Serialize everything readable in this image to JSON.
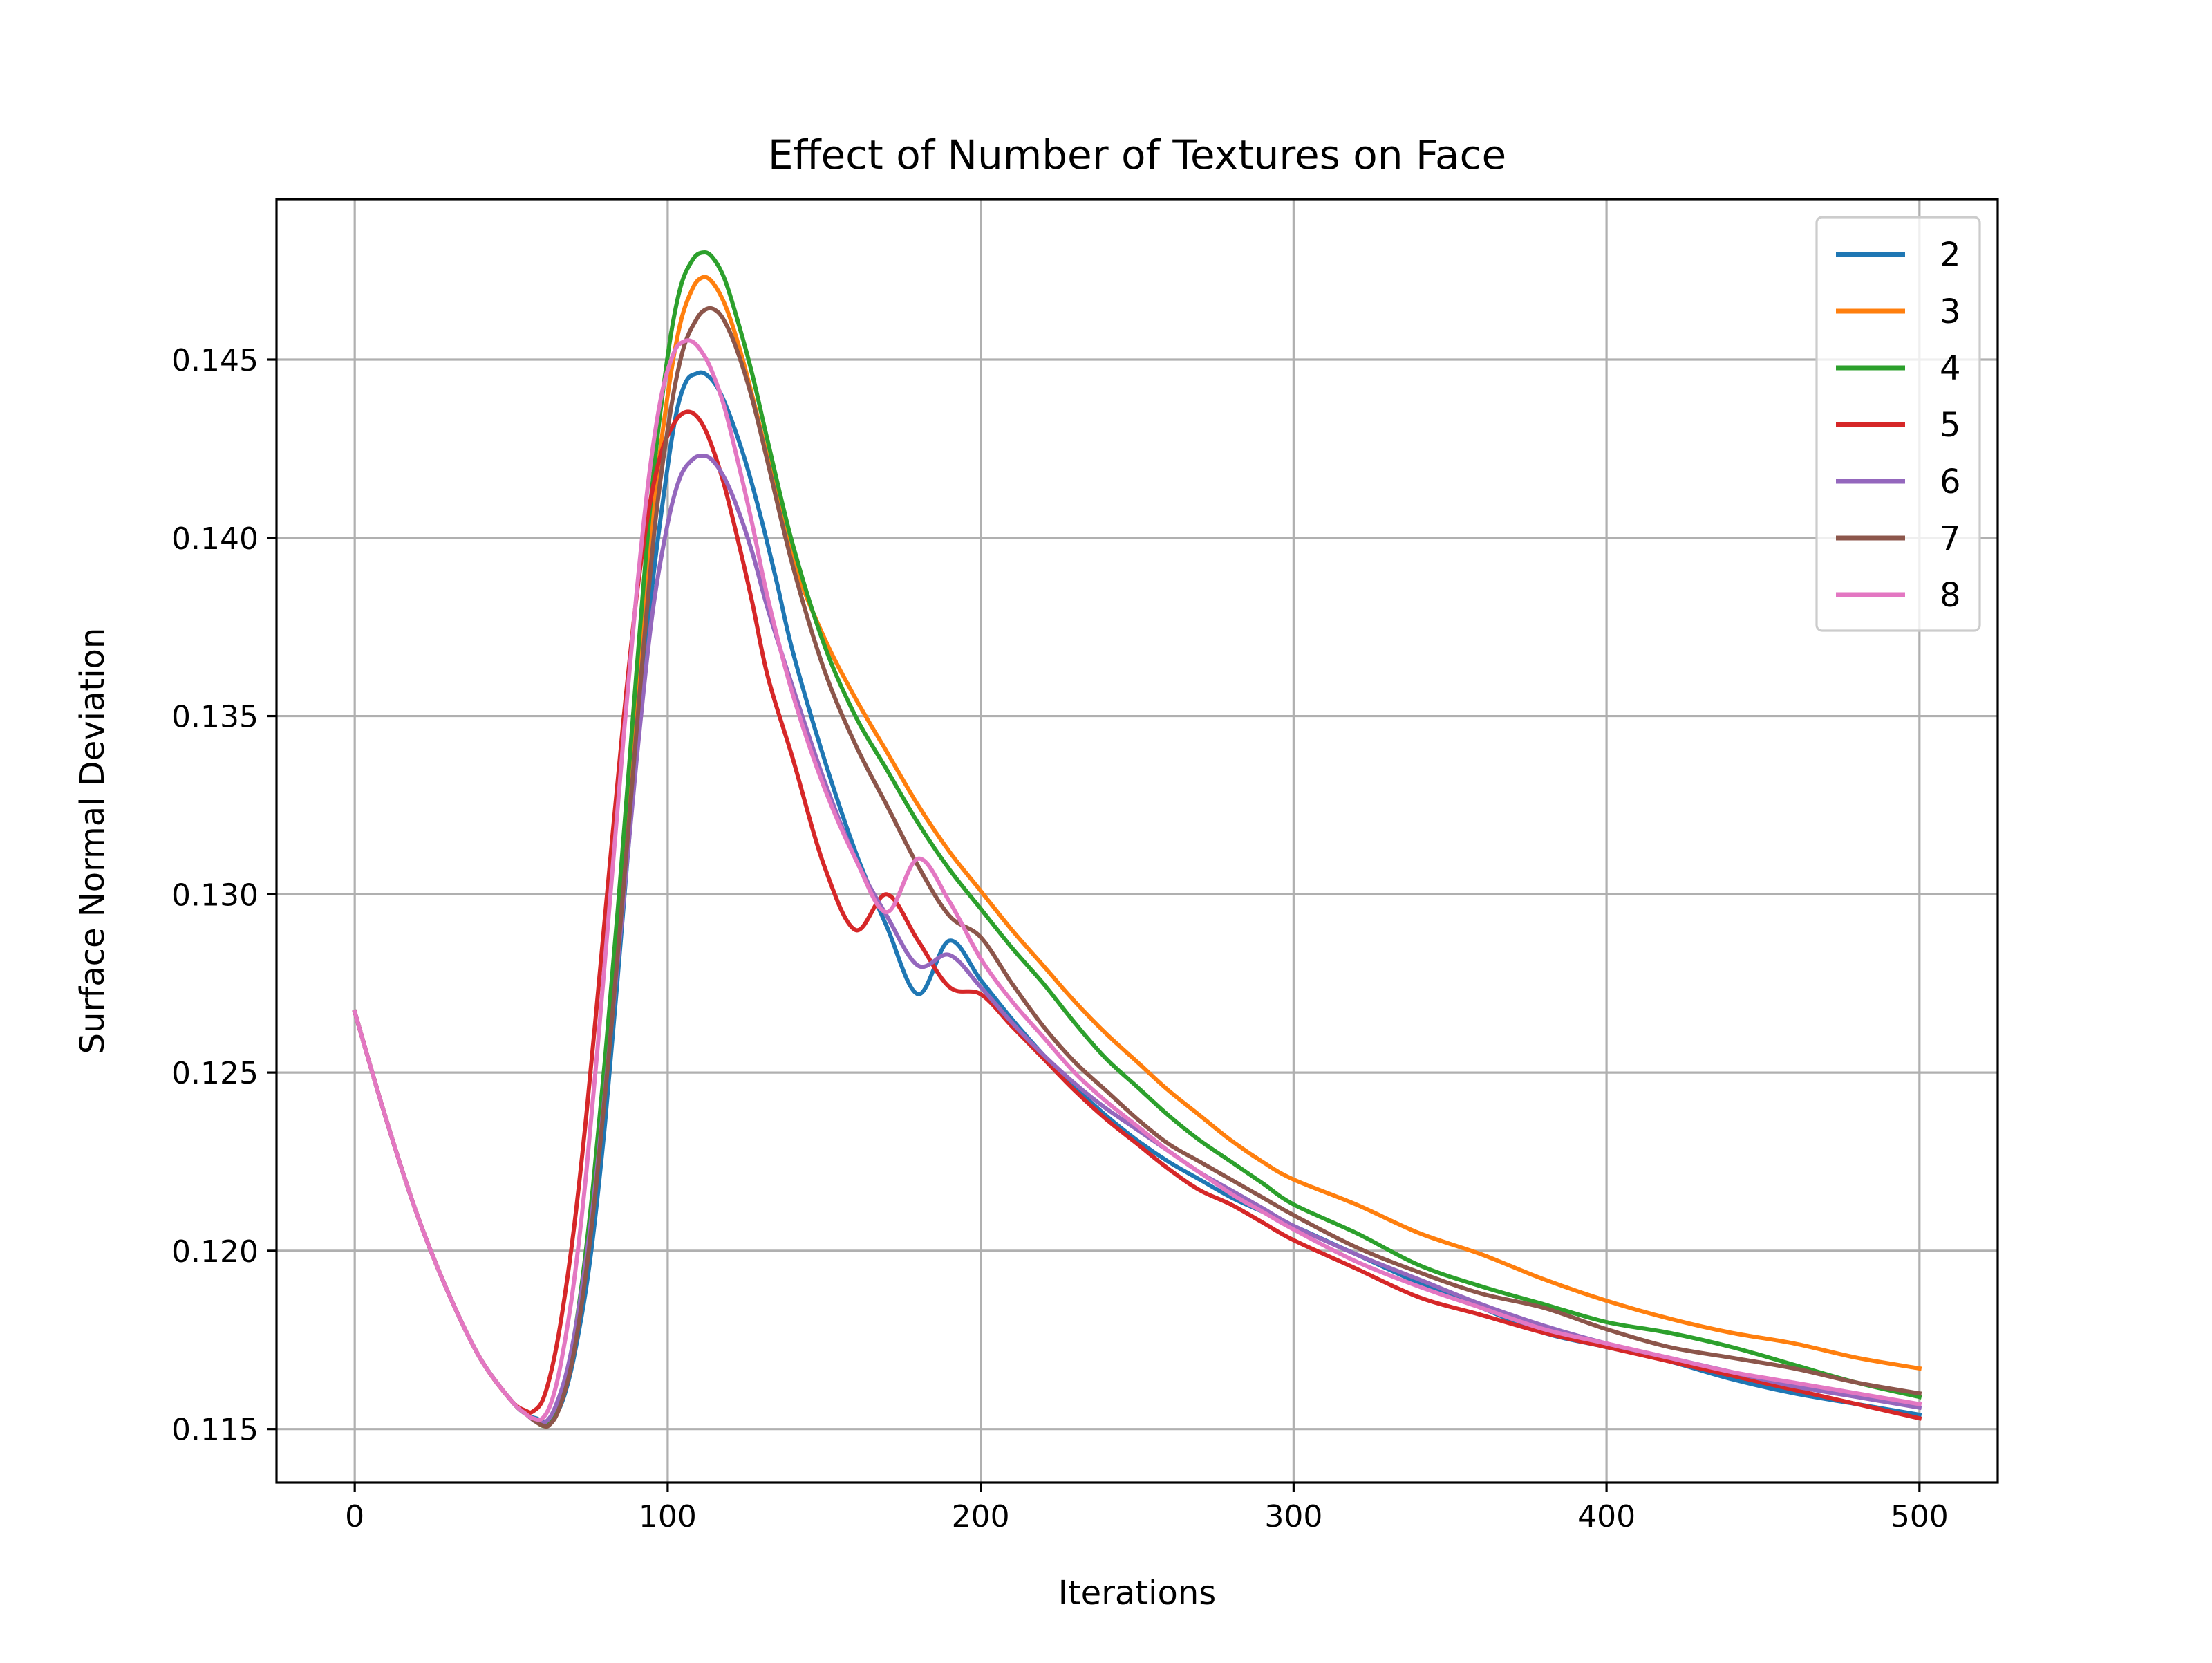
{
  "chart_data": {
    "type": "line",
    "title": "Effect of Number of Textures on Face",
    "xlabel": "Iterations",
    "ylabel": "Surface Normal Deviation",
    "xlim": [
      -25,
      525
    ],
    "ylim": [
      0.1135,
      0.1495
    ],
    "xticks": [
      0,
      100,
      200,
      300,
      400,
      500
    ],
    "xtick_labels": [
      "0",
      "100",
      "200",
      "300",
      "400",
      "500"
    ],
    "yticks": [
      0.115,
      0.12,
      0.125,
      0.13,
      0.135,
      0.14,
      0.145
    ],
    "ytick_labels": [
      "0.115",
      "0.120",
      "0.125",
      "0.130",
      "0.135",
      "0.140",
      "0.145"
    ],
    "grid": true,
    "legend_position": "top-right",
    "series": [
      {
        "name": "2",
        "color": "#1f77b4",
        "x": [
          0,
          10,
          20,
          30,
          40,
          50,
          55,
          58,
          62,
          66,
          70,
          75,
          80,
          85,
          90,
          95,
          100,
          103,
          106,
          109,
          112,
          116,
          120,
          125,
          130,
          135,
          140,
          150,
          160,
          170,
          180,
          190,
          200,
          210,
          220,
          230,
          240,
          250,
          260,
          270,
          280,
          290,
          300,
          320,
          340,
          360,
          380,
          400,
          420,
          440,
          460,
          480,
          500
        ],
        "y": [
          0.1267,
          0.1237,
          0.121,
          0.1188,
          0.117,
          0.1158,
          0.1154,
          0.1153,
          0.1152,
          0.1157,
          0.117,
          0.1196,
          0.1236,
          0.1287,
          0.134,
          0.1386,
          0.142,
          0.1436,
          0.1444,
          0.1446,
          0.1446,
          0.1442,
          0.1434,
          0.1421,
          0.1405,
          0.1387,
          0.1368,
          0.1338,
          0.1312,
          0.1291,
          0.1272,
          0.1287,
          0.1276,
          0.1265,
          0.1255,
          0.1246,
          0.1238,
          0.1231,
          0.1225,
          0.122,
          0.1215,
          0.1211,
          0.1207,
          0.1199,
          0.1191,
          0.1184,
          0.1177,
          0.1173,
          0.1169,
          0.1164,
          0.116,
          0.1157,
          0.1154
        ]
      },
      {
        "name": "3",
        "color": "#ff7f0e",
        "x": [
          0,
          10,
          20,
          30,
          40,
          50,
          55,
          58,
          61,
          64,
          68,
          72,
          76,
          80,
          85,
          90,
          95,
          100,
          104,
          108,
          111,
          114,
          118,
          122,
          127,
          132,
          140,
          150,
          160,
          170,
          180,
          190,
          200,
          210,
          220,
          230,
          240,
          250,
          260,
          270,
          280,
          290,
          300,
          320,
          340,
          360,
          380,
          400,
          420,
          440,
          460,
          480,
          500
        ],
        "y": [
          0.1267,
          0.1237,
          0.121,
          0.1188,
          0.117,
          0.1158,
          0.1154,
          0.1152,
          0.1151,
          0.1155,
          0.1166,
          0.1186,
          0.1215,
          0.1251,
          0.1302,
          0.1356,
          0.1405,
          0.144,
          0.146,
          0.147,
          0.1473,
          0.1472,
          0.1466,
          0.1456,
          0.144,
          0.1422,
          0.1394,
          0.1372,
          0.1355,
          0.134,
          0.1325,
          0.1312,
          0.1301,
          0.129,
          0.128,
          0.127,
          0.1261,
          0.1253,
          0.1245,
          0.1238,
          0.1231,
          0.1225,
          0.122,
          0.1213,
          0.1205,
          0.1199,
          0.1192,
          0.1186,
          0.1181,
          0.1177,
          0.1174,
          0.117,
          0.1167
        ]
      },
      {
        "name": "4",
        "color": "#2ca02c",
        "x": [
          0,
          10,
          20,
          30,
          40,
          50,
          55,
          58,
          61,
          64,
          68,
          72,
          76,
          80,
          85,
          90,
          95,
          100,
          104,
          108,
          111,
          114,
          118,
          122,
          127,
          132,
          140,
          150,
          160,
          170,
          180,
          190,
          200,
          210,
          220,
          230,
          240,
          250,
          260,
          270,
          280,
          290,
          300,
          320,
          340,
          360,
          380,
          400,
          420,
          440,
          460,
          480,
          500
        ],
        "y": [
          0.1267,
          0.1237,
          0.121,
          0.1188,
          0.117,
          0.1158,
          0.1154,
          0.1152,
          0.1151,
          0.1155,
          0.1166,
          0.1187,
          0.1217,
          0.1254,
          0.1306,
          0.1362,
          0.1414,
          0.1451,
          0.147,
          0.1478,
          0.148,
          0.1479,
          0.1473,
          0.1462,
          0.1446,
          0.1427,
          0.1398,
          0.137,
          0.135,
          0.1335,
          0.132,
          0.1307,
          0.1296,
          0.1285,
          0.1275,
          0.1264,
          0.1254,
          0.1246,
          0.1238,
          0.1231,
          0.1225,
          0.1219,
          0.1213,
          0.1205,
          0.1196,
          0.119,
          0.1185,
          0.118,
          0.1177,
          0.1173,
          0.1168,
          0.1163,
          0.1159
        ]
      },
      {
        "name": "5",
        "color": "#d62728",
        "x": [
          0,
          10,
          20,
          30,
          40,
          50,
          55,
          57,
          60,
          63,
          66,
          70,
          74,
          78,
          82,
          86,
          90,
          94,
          98,
          102,
          105,
          108,
          111,
          114,
          118,
          122,
          127,
          132,
          140,
          150,
          160,
          170,
          180,
          190,
          200,
          210,
          220,
          230,
          240,
          250,
          260,
          270,
          280,
          290,
          300,
          320,
          340,
          360,
          380,
          400,
          420,
          440,
          460,
          480,
          500
        ],
        "y": [
          0.1267,
          0.1237,
          0.121,
          0.1188,
          0.117,
          0.1158,
          0.1155,
          0.1155,
          0.1158,
          0.1167,
          0.1181,
          0.1206,
          0.1238,
          0.1275,
          0.1313,
          0.135,
          0.1383,
          0.1408,
          0.1424,
          0.1432,
          0.1435,
          0.1435,
          0.1432,
          0.1426,
          0.1415,
          0.1401,
          0.1382,
          0.1361,
          0.1338,
          0.1308,
          0.129,
          0.13,
          0.1287,
          0.1274,
          0.1272,
          0.1263,
          0.1254,
          0.1245,
          0.1237,
          0.123,
          0.1223,
          0.1217,
          0.1213,
          0.1208,
          0.1203,
          0.1195,
          0.1187,
          0.1182,
          0.1177,
          0.1173,
          0.1169,
          0.1165,
          0.1161,
          0.1157,
          0.1153
        ]
      },
      {
        "name": "6",
        "color": "#9467bd",
        "x": [
          0,
          10,
          20,
          30,
          40,
          50,
          55,
          58,
          61,
          64,
          68,
          72,
          76,
          80,
          85,
          90,
          95,
          100,
          104,
          108,
          111,
          114,
          118,
          122,
          127,
          132,
          140,
          150,
          160,
          170,
          180,
          190,
          200,
          210,
          220,
          230,
          240,
          250,
          260,
          270,
          280,
          290,
          300,
          320,
          340,
          360,
          380,
          400,
          420,
          440,
          460,
          480,
          500
        ],
        "y": [
          0.1267,
          0.1237,
          0.121,
          0.1188,
          0.117,
          0.1158,
          0.1154,
          0.1152,
          0.1152,
          0.1156,
          0.1167,
          0.1186,
          0.1212,
          0.1245,
          0.129,
          0.1337,
          0.1378,
          0.1404,
          0.1417,
          0.1422,
          0.1423,
          0.1422,
          0.1417,
          0.1409,
          0.1396,
          0.138,
          0.1358,
          0.1332,
          0.131,
          0.1294,
          0.128,
          0.1283,
          0.1274,
          0.1264,
          0.1255,
          0.1247,
          0.124,
          0.1234,
          0.1228,
          0.1222,
          0.1217,
          0.1212,
          0.1207,
          0.1199,
          0.1192,
          0.1185,
          0.1179,
          0.1174,
          0.117,
          0.1166,
          0.1162,
          0.1159,
          0.1156
        ]
      },
      {
        "name": "7",
        "color": "#8c564b",
        "x": [
          0,
          10,
          20,
          30,
          40,
          50,
          55,
          58,
          60,
          62,
          65,
          69,
          73,
          77,
          81,
          86,
          91,
          96,
          101,
          105,
          109,
          112,
          115,
          118,
          122,
          127,
          132,
          140,
          150,
          160,
          170,
          180,
          190,
          200,
          210,
          220,
          230,
          240,
          250,
          260,
          270,
          280,
          290,
          300,
          320,
          340,
          360,
          380,
          400,
          420,
          440,
          460,
          480,
          500
        ],
        "y": [
          0.1267,
          0.1237,
          0.121,
          0.1188,
          0.117,
          0.1158,
          0.1154,
          0.1152,
          0.1151,
          0.1151,
          0.1155,
          0.1167,
          0.1188,
          0.1217,
          0.1253,
          0.1303,
          0.1356,
          0.1404,
          0.1436,
          0.1453,
          0.1461,
          0.1464,
          0.1464,
          0.1461,
          0.1453,
          0.1439,
          0.1421,
          0.1392,
          0.1363,
          0.1342,
          0.1325,
          0.1308,
          0.1294,
          0.1288,
          0.1275,
          0.1263,
          0.1253,
          0.1245,
          0.1237,
          0.123,
          0.1225,
          0.122,
          0.1215,
          0.121,
          0.1201,
          0.1194,
          0.1188,
          0.1184,
          0.1178,
          0.1173,
          0.117,
          0.1167,
          0.1163,
          0.116
        ]
      },
      {
        "name": "8",
        "color": "#e377c2",
        "x": [
          0,
          10,
          20,
          30,
          40,
          50,
          55,
          57,
          60,
          63,
          66,
          70,
          74,
          78,
          82,
          86,
          90,
          94,
          98,
          102,
          105,
          108,
          111,
          114,
          118,
          122,
          127,
          132,
          140,
          150,
          160,
          170,
          180,
          190,
          200,
          210,
          220,
          230,
          240,
          250,
          260,
          270,
          280,
          290,
          300,
          320,
          340,
          360,
          380,
          400,
          420,
          440,
          460,
          480,
          500
        ],
        "y": [
          0.1267,
          0.1237,
          0.121,
          0.1188,
          0.117,
          0.1158,
          0.1154,
          0.1153,
          0.1153,
          0.1158,
          0.1169,
          0.1191,
          0.1222,
          0.1261,
          0.1303,
          0.1345,
          0.1384,
          0.1417,
          0.144,
          0.1452,
          0.1455,
          0.1455,
          0.1452,
          0.1447,
          0.1437,
          0.1423,
          0.1404,
          0.1383,
          0.1356,
          0.133,
          0.131,
          0.1295,
          0.131,
          0.1298,
          0.1282,
          0.127,
          0.126,
          0.125,
          0.1242,
          0.1235,
          0.1228,
          0.1222,
          0.1216,
          0.1211,
          0.1206,
          0.1197,
          0.119,
          0.1184,
          0.1178,
          0.1174,
          0.117,
          0.1166,
          0.1163,
          0.116,
          0.1157
        ]
      }
    ]
  }
}
